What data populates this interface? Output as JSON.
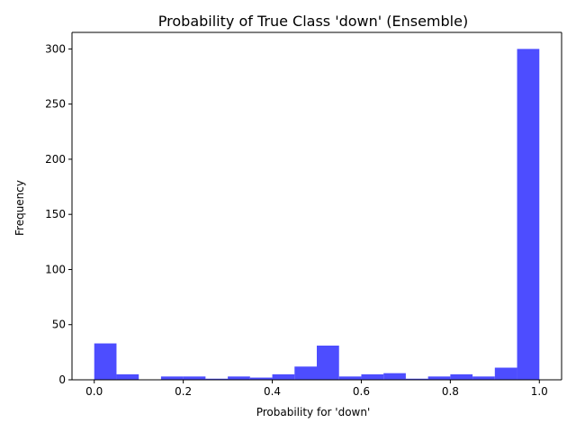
{
  "chart_data": {
    "type": "bar",
    "title": "Probability of True Class 'down' (Ensemble)",
    "xlabel": "Probability for 'down'",
    "ylabel": "Frequency",
    "xlim": [
      -0.05,
      1.05
    ],
    "ylim": [
      0,
      315
    ],
    "xticks": [
      0.0,
      0.2,
      0.4,
      0.6,
      0.8,
      1.0
    ],
    "xtick_labels": [
      "0.0",
      "0.2",
      "0.4",
      "0.6",
      "0.8",
      "1.0"
    ],
    "yticks": [
      0,
      50,
      100,
      150,
      200,
      250,
      300
    ],
    "ytick_labels": [
      "0",
      "50",
      "100",
      "150",
      "200",
      "250",
      "300"
    ],
    "bin_edges": [
      0.0,
      0.05,
      0.1,
      0.15,
      0.2,
      0.25,
      0.3,
      0.35,
      0.4,
      0.45,
      0.5,
      0.55,
      0.6,
      0.65,
      0.7,
      0.75,
      0.8,
      0.85,
      0.9,
      0.95,
      1.0
    ],
    "values": [
      33,
      5,
      0,
      3,
      3,
      1,
      3,
      2,
      5,
      12,
      31,
      3,
      5,
      6,
      1,
      3,
      5,
      3,
      11,
      300
    ],
    "bar_color": "#4d4dff",
    "grid": false,
    "legend": "none"
  }
}
